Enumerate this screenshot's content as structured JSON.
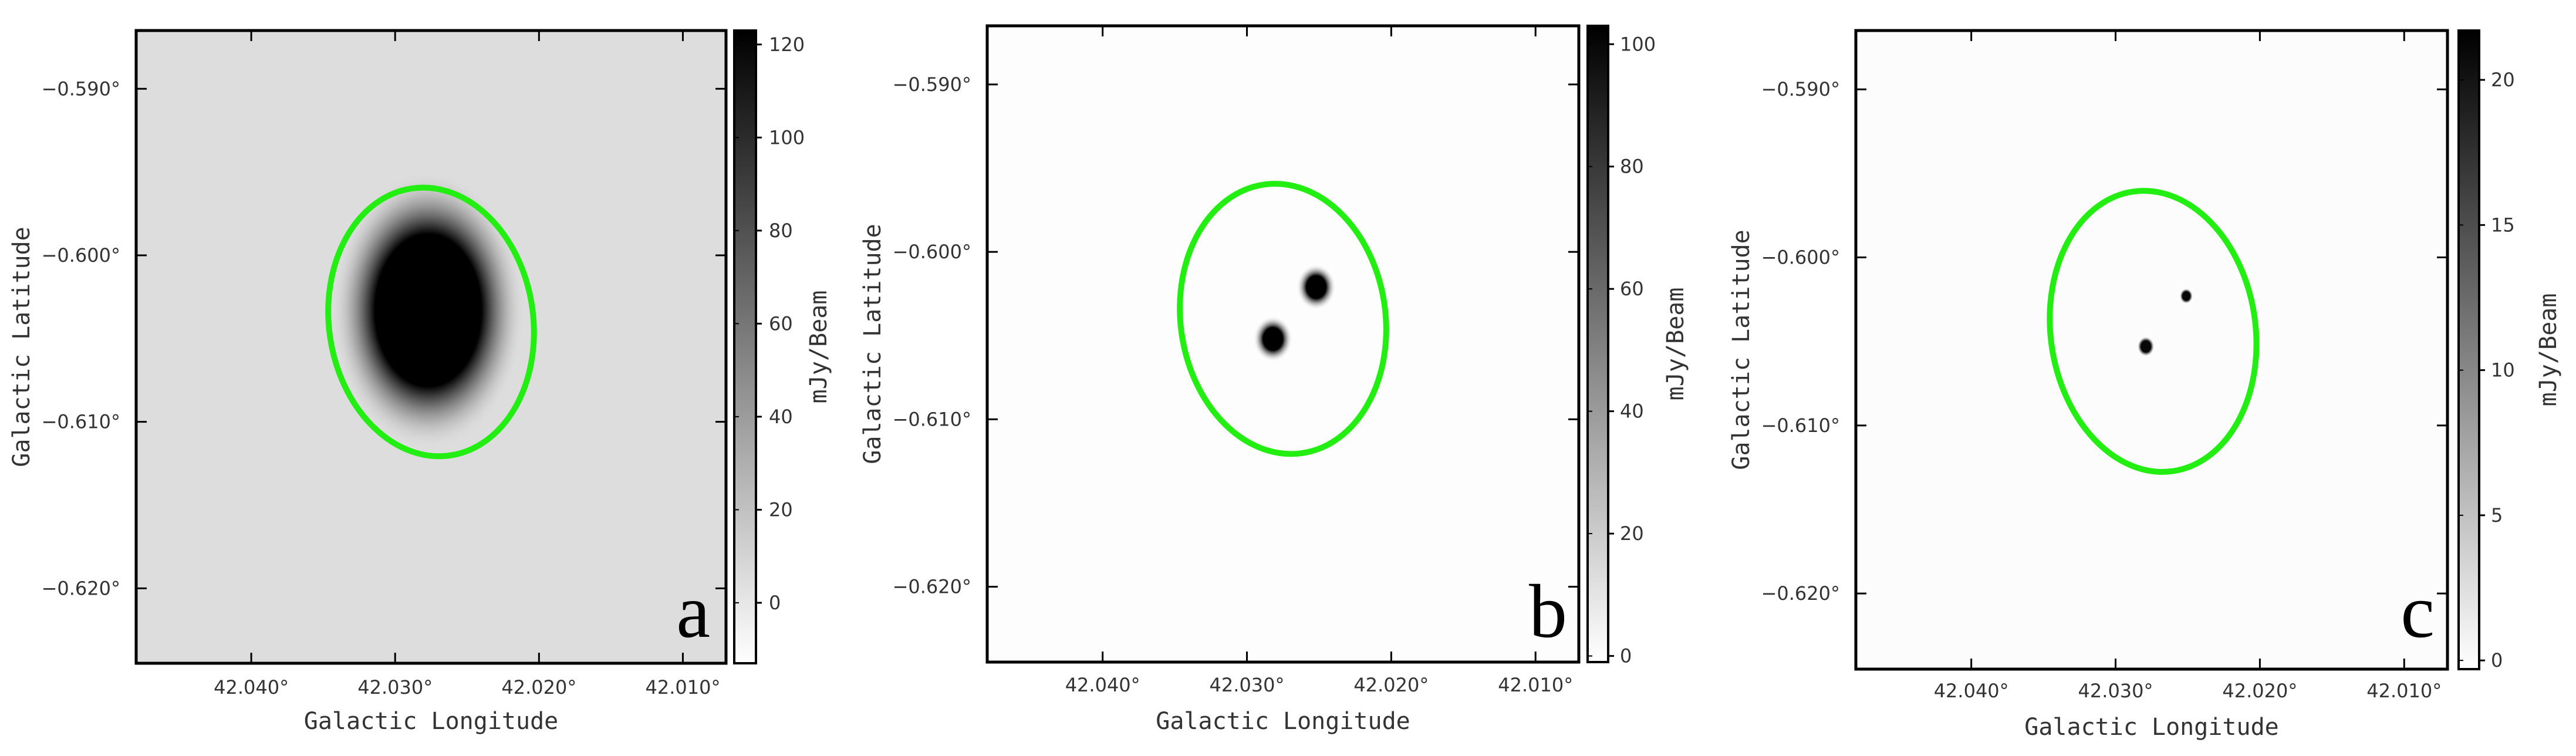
{
  "chart_data": [
    {
      "type": "heatmap",
      "panel": "a",
      "xlabel": "Galactic Longitude",
      "ylabel": "Galactic Latitude",
      "colorbar_label": "mJy/Beam",
      "xlim": [
        42.048,
        42.007
      ],
      "ylim": [
        -0.6245,
        -0.5865
      ],
      "x_ticks": [
        {
          "value": 42.04,
          "label": "42.040°"
        },
        {
          "value": 42.03,
          "label": "42.030°"
        },
        {
          "value": 42.02,
          "label": "42.020°"
        },
        {
          "value": 42.01,
          "label": "42.010°"
        }
      ],
      "y_ticks": [
        {
          "value": -0.59,
          "label": "−0.590°"
        },
        {
          "value": -0.6,
          "label": "−0.600°"
        },
        {
          "value": -0.61,
          "label": "−0.610°"
        },
        {
          "value": -0.62,
          "label": "−0.620°"
        }
      ],
      "colorbar_range": [
        -13,
        123
      ],
      "colorbar_ticks": [
        {
          "value": 120,
          "label": "120"
        },
        {
          "value": 100,
          "label": "100"
        },
        {
          "value": 80,
          "label": "80"
        },
        {
          "value": 60,
          "label": "60"
        },
        {
          "value": 40,
          "label": "40"
        },
        {
          "value": 20,
          "label": "20"
        },
        {
          "value": 0,
          "label": "0"
        }
      ],
      "background_value": 5,
      "sources": [
        {
          "l": 42.0277,
          "b": -0.6033,
          "peak": 123,
          "sigma_l": 0.0042,
          "sigma_b": 0.0052,
          "core": 0.55
        }
      ],
      "contour": {
        "color": "#22ee11",
        "l": 42.0275,
        "b": -0.604,
        "rl": 0.0071,
        "rb": 0.0081
      },
      "letter": "a"
    },
    {
      "type": "heatmap",
      "panel": "b",
      "xlabel": "Galactic Longitude",
      "ylabel": "Galactic Latitude",
      "colorbar_label": "mJy/Beam",
      "xlim": [
        42.048,
        42.007
      ],
      "ylim": [
        -0.6245,
        -0.5865
      ],
      "x_ticks": [
        {
          "value": 42.04,
          "label": "42.040°"
        },
        {
          "value": 42.03,
          "label": "42.030°"
        },
        {
          "value": 42.02,
          "label": "42.020°"
        },
        {
          "value": 42.01,
          "label": "42.010°"
        }
      ],
      "y_ticks": [
        {
          "value": -0.59,
          "label": "−0.590°"
        },
        {
          "value": -0.6,
          "label": "−0.600°"
        },
        {
          "value": -0.61,
          "label": "−0.610°"
        },
        {
          "value": -0.62,
          "label": "−0.620°"
        }
      ],
      "colorbar_range": [
        -1,
        103
      ],
      "colorbar_ticks": [
        {
          "value": 100,
          "label": "100"
        },
        {
          "value": 80,
          "label": "80"
        },
        {
          "value": 60,
          "label": "60"
        },
        {
          "value": 40,
          "label": "40"
        },
        {
          "value": 20,
          "label": "20"
        },
        {
          "value": 0,
          "label": "0"
        }
      ],
      "background_value": 0,
      "sources": [
        {
          "l": 42.0252,
          "b": -0.6021,
          "peak": 103,
          "sigma_l": 0.00085,
          "sigma_b": 0.00085,
          "core": 0.5
        },
        {
          "l": 42.0282,
          "b": -0.6052,
          "peak": 103,
          "sigma_l": 0.00085,
          "sigma_b": 0.00085,
          "core": 0.5
        }
      ],
      "contour": {
        "color": "#22ee11",
        "l": 42.0275,
        "b": -0.604,
        "rl": 0.0071,
        "rb": 0.0081
      },
      "letter": "b"
    },
    {
      "type": "heatmap",
      "panel": "c",
      "xlabel": "Galactic Longitude",
      "ylabel": "Galactic Latitude",
      "colorbar_label": "mJy/Beam",
      "xlim": [
        42.048,
        42.007
      ],
      "ylim": [
        -0.6245,
        -0.5865
      ],
      "x_ticks": [
        {
          "value": 42.04,
          "label": "42.040°"
        },
        {
          "value": 42.03,
          "label": "42.030°"
        },
        {
          "value": 42.02,
          "label": "42.020°"
        },
        {
          "value": 42.01,
          "label": "42.010°"
        }
      ],
      "y_ticks": [
        {
          "value": -0.59,
          "label": "−0.590°"
        },
        {
          "value": -0.6,
          "label": "−0.600°"
        },
        {
          "value": -0.61,
          "label": "−0.610°"
        },
        {
          "value": -0.62,
          "label": "−0.620°"
        }
      ],
      "colorbar_range": [
        -0.3,
        21.7
      ],
      "colorbar_ticks": [
        {
          "value": 20,
          "label": "20"
        },
        {
          "value": 15,
          "label": "15"
        },
        {
          "value": 10,
          "label": "10"
        },
        {
          "value": 5,
          "label": "5"
        },
        {
          "value": 0,
          "label": "0"
        }
      ],
      "background_value": 0,
      "sources": [
        {
          "l": 42.0251,
          "b": -0.6023,
          "peak": 21,
          "sigma_l": 0.00028,
          "sigma_b": 0.00028,
          "core": 0.6
        },
        {
          "l": 42.0279,
          "b": -0.6053,
          "peak": 21,
          "sigma_l": 0.00036,
          "sigma_b": 0.00036,
          "core": 0.6
        }
      ],
      "contour": {
        "color": "#22ee11",
        "l": 42.0274,
        "b": -0.6044,
        "rl": 0.0071,
        "rb": 0.0084
      },
      "letter": "c"
    }
  ]
}
